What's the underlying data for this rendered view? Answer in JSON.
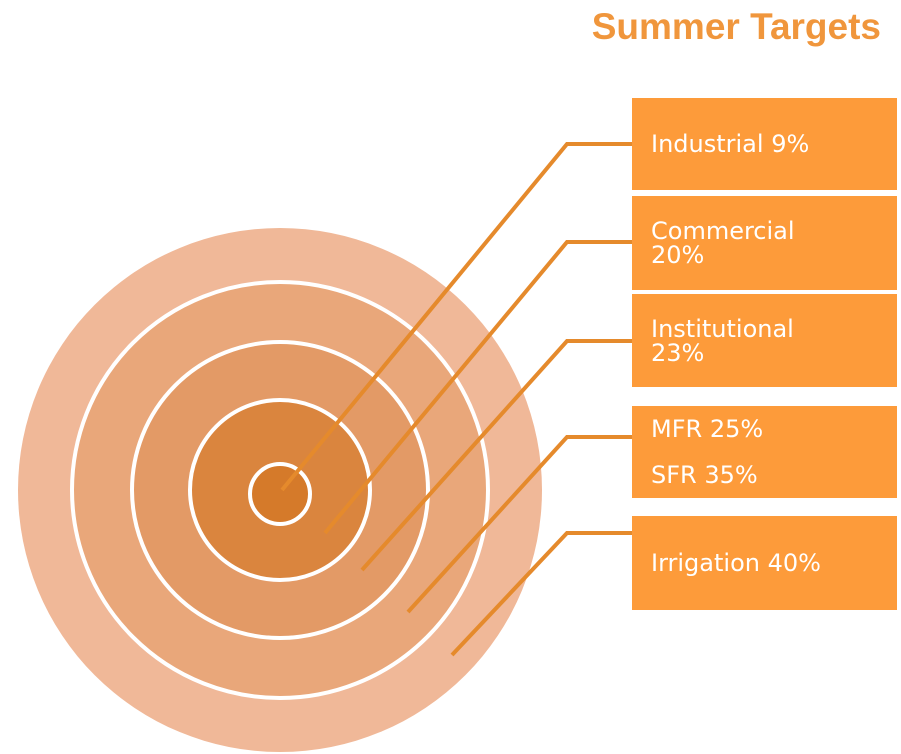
{
  "title": "Summer Targets",
  "boxes": [
    {
      "lines": [
        "Industrial 9%"
      ]
    },
    {
      "lines": [
        "Commercial",
        "20%"
      ]
    },
    {
      "lines": [
        "Institutional",
        "23%"
      ]
    },
    {
      "lines": [
        "MFR 25%",
        "SFR 35%"
      ]
    },
    {
      "lines": [
        "Irrigation 40%"
      ]
    }
  ]
}
